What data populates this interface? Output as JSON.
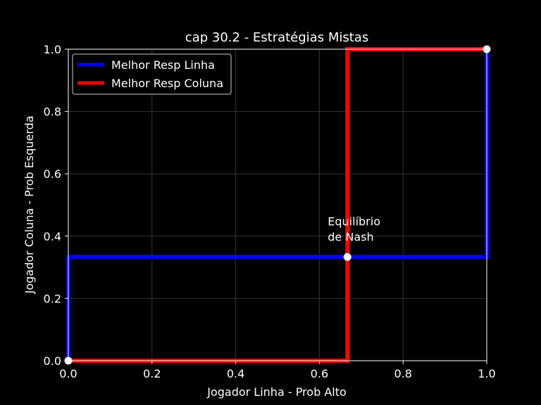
{
  "chart_data": {
    "type": "line",
    "title": "cap 30.2 - Estratégias Mistas",
    "xlabel": "Jogador Linha - Prob Alto",
    "ylabel": "Jogador Coluna - Prob Esquerda",
    "xlim": [
      0.0,
      1.0
    ],
    "ylim": [
      0.0,
      1.0
    ],
    "xticks": [
      0.0,
      0.2,
      0.4,
      0.6,
      0.8,
      1.0
    ],
    "yticks": [
      0.0,
      0.2,
      0.4,
      0.6,
      0.8,
      1.0
    ],
    "xtick_labels": [
      "0.0",
      "0.2",
      "0.4",
      "0.6",
      "0.8",
      "1.0"
    ],
    "ytick_labels": [
      "0.0",
      "0.2",
      "0.4",
      "0.6",
      "0.8",
      "1.0"
    ],
    "grid": true,
    "legend_position": "top-left",
    "series": [
      {
        "name": "Melhor Resp Linha",
        "color": "#0000ff",
        "x": [
          0.0,
          0.0,
          1.0,
          1.0
        ],
        "y": [
          0.0,
          0.333,
          0.333,
          1.0
        ]
      },
      {
        "name": "Melhor Resp Coluna",
        "color": "#ff0000",
        "x": [
          0.0,
          0.667,
          0.667,
          1.0
        ],
        "y": [
          0.0,
          0.0,
          1.0,
          1.0
        ]
      }
    ],
    "points": [
      {
        "x": 0.0,
        "y": 0.0,
        "color": "#ffffff"
      },
      {
        "x": 1.0,
        "y": 1.0,
        "color": "#ffffff"
      },
      {
        "x": 0.667,
        "y": 0.333,
        "color": "#ffffff"
      }
    ],
    "annotation": {
      "lines": [
        "Equilíbrio",
        "de Nash"
      ],
      "x": 0.62,
      "y": 0.385
    }
  }
}
